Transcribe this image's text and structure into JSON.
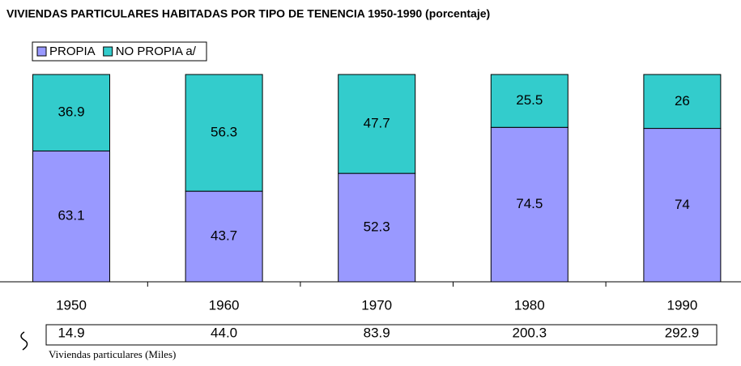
{
  "chart_data": {
    "type": "stacked_bar",
    "title": "VIVIENDAS PARTICULARES HABITADAS POR TIPO DE TENENCIA 1950-1990  (porcentaje)",
    "categories": [
      "1950",
      "1960",
      "1970",
      "1980",
      "1990"
    ],
    "series": [
      {
        "name": "PROPIA",
        "color": "#9999ff",
        "values": [
          63.1,
          43.7,
          52.3,
          74.5,
          74
        ]
      },
      {
        "name": "NO PROPIA a/",
        "color": "#33cccc",
        "values": [
          36.9,
          56.3,
          47.7,
          25.5,
          26
        ]
      }
    ],
    "ylim": [
      0,
      100
    ],
    "legend": "top-left",
    "table": {
      "label": "Viviendas particulares (Miles)",
      "values": [
        "14.9",
        "44.0",
        "83.9",
        "200.3",
        "292.9"
      ]
    }
  }
}
